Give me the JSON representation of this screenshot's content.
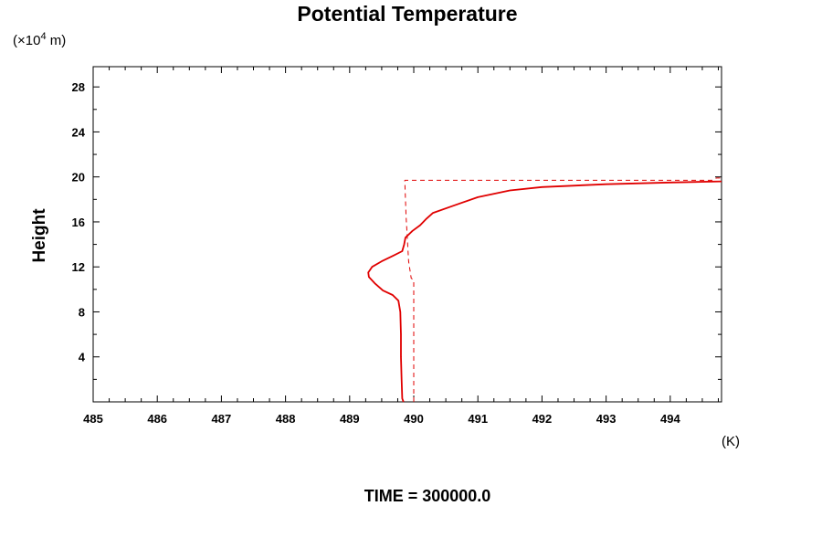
{
  "chart_data": {
    "type": "line",
    "title": "Potential Temperature",
    "ylabel": "Height",
    "y_unit_prefix": "(×10",
    "y_unit_exponent": "4",
    "y_unit_suffix": " m)",
    "x_unit": "(K)",
    "footer": "TIME = 300000.0",
    "xlim": [
      485,
      494.8
    ],
    "ylim": [
      0,
      29.8
    ],
    "x_ticks": [
      485,
      486,
      487,
      488,
      489,
      490,
      491,
      492,
      493,
      494
    ],
    "y_ticks": [
      4,
      8,
      12,
      16,
      20,
      24,
      28
    ],
    "x_tick_labels": [
      "485",
      "486",
      "487",
      "488",
      "489",
      "490",
      "491",
      "492",
      "493",
      "494"
    ],
    "y_tick_labels": [
      "4",
      "8",
      "12",
      "16",
      "20",
      "24",
      "28"
    ],
    "grid": false,
    "series": [
      {
        "style": "solid",
        "color": "#e00000",
        "points": [
          [
            489.84,
            0
          ],
          [
            489.82,
            0.3
          ],
          [
            489.81,
            2
          ],
          [
            489.8,
            4
          ],
          [
            489.8,
            6
          ],
          [
            489.79,
            8
          ],
          [
            489.76,
            9.0
          ],
          [
            489.67,
            9.5
          ],
          [
            489.52,
            9.9
          ],
          [
            489.4,
            10.5
          ],
          [
            489.3,
            11.1
          ],
          [
            489.29,
            11.5
          ],
          [
            489.35,
            12.0
          ],
          [
            489.5,
            12.5
          ],
          [
            489.68,
            13.0
          ],
          [
            489.82,
            13.4
          ],
          [
            489.85,
            14.0
          ],
          [
            489.87,
            14.6
          ],
          [
            489.98,
            15.2
          ],
          [
            490.1,
            15.7
          ],
          [
            490.2,
            16.3
          ],
          [
            490.3,
            16.8
          ],
          [
            490.6,
            17.4
          ],
          [
            491.0,
            18.2
          ],
          [
            491.5,
            18.8
          ],
          [
            492.0,
            19.1
          ],
          [
            493.0,
            19.35
          ],
          [
            494.0,
            19.5
          ],
          [
            494.8,
            19.6
          ]
        ]
      },
      {
        "style": "dashed",
        "color": "#e00000",
        "points": [
          [
            490.0,
            0
          ],
          [
            490.0,
            10.8
          ],
          [
            489.96,
            11.0
          ],
          [
            489.92,
            12.5
          ],
          [
            489.9,
            14.5
          ],
          [
            489.88,
            16.5
          ],
          [
            489.86,
            19.7
          ],
          [
            494.65,
            19.7
          ],
          [
            494.72,
            19.9
          ],
          [
            494.8,
            19.9
          ]
        ]
      }
    ]
  }
}
